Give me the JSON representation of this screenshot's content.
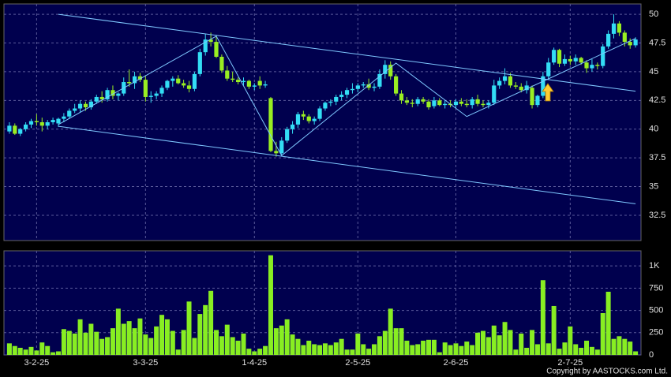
{
  "chart_data": {
    "type": "candlestick",
    "up_color": "#33ddf5",
    "down_color": "#99ee22",
    "volume_color": "#88ee22",
    "grid": true,
    "xlim": [
      -1,
      116
    ],
    "xticks": [
      {
        "value": 5,
        "label": "3-2-25"
      },
      {
        "value": 25,
        "label": "3-3-25"
      },
      {
        "value": 45,
        "label": "1-4-25"
      },
      {
        "value": 64,
        "label": "2-5-25"
      },
      {
        "value": 82,
        "label": "2-6-25"
      },
      {
        "value": 103,
        "label": "2-7-25"
      }
    ],
    "ylim": [
      30.3,
      50.9
    ],
    "yticks": [
      32.5,
      35,
      37.5,
      40,
      42.5,
      45,
      47.5,
      50
    ],
    "volume_ylim": [
      0,
      1170
    ],
    "volume_yticks": [
      0,
      250,
      500,
      750,
      {
        "value": 1000,
        "label": "1K"
      }
    ],
    "open": [
      39.8,
      40.3,
      39.6,
      40.0,
      40.4,
      40.7,
      40.6,
      40.3,
      40.6,
      40.5,
      40.9,
      41.1,
      41.6,
      41.8,
      42.2,
      41.9,
      42.4,
      42.8,
      42.6,
      43.4,
      42.9,
      43.1,
      44.1,
      44.0,
      44.6,
      44.3,
      42.8,
      42.9,
      43.1,
      43.6,
      44.2,
      44.4,
      44.0,
      43.8,
      43.5,
      44.8,
      46.7,
      47.8,
      47.6,
      46.3,
      45.1,
      44.4,
      44.3,
      44.1,
      44.2,
      43.7,
      44.2,
      43.8,
      42.7,
      38.1,
      37.9,
      39.0,
      40.0,
      40.4,
      41.3,
      41.1,
      40.7,
      40.9,
      41.8,
      42.3,
      42.4,
      42.8,
      43.0,
      43.4,
      43.5,
      43.8,
      43.9,
      43.6,
      43.7,
      44.8,
      45.6,
      44.6,
      43.1,
      42.5,
      42.3,
      42.2,
      42.6,
      42.4,
      42.0,
      42.5,
      42.1,
      42.2,
      42.1,
      42.4,
      42.2,
      42.1,
      42.6,
      42.2,
      42.1,
      42.3,
      43.8,
      44.2,
      44.6,
      43.8,
      43.7,
      43.4,
      43.6,
      42.1,
      42.9,
      44.6,
      45.8,
      46.9,
      45.7,
      46.1,
      45.9,
      46.2,
      45.8,
      45.3,
      45.6,
      45.5,
      47.2,
      48.3,
      49.2,
      48.4,
      47.6,
      47.3
    ],
    "high": [
      40.6,
      40.5,
      40.1,
      40.6,
      40.9,
      41.3,
      41.0,
      40.8,
      41.0,
      41.0,
      41.4,
      41.8,
      42.2,
      42.5,
      42.4,
      42.6,
      43.0,
      43.3,
      43.6,
      43.8,
      43.2,
      44.5,
      45.2,
      45.0,
      44.9,
      44.6,
      43.3,
      43.3,
      43.8,
      44.3,
      44.6,
      44.7,
      44.3,
      44.2,
      45.0,
      47.0,
      48.3,
      48.4,
      48.2,
      46.5,
      45.5,
      45.0,
      44.5,
      44.5,
      44.3,
      44.0,
      44.6,
      44.2,
      42.8,
      38.9,
      39.3,
      40.2,
      40.7,
      41.5,
      41.6,
      41.3,
      41.1,
      42.0,
      42.4,
      42.6,
      43.0,
      43.3,
      43.6,
      44.0,
      44.0,
      44.1,
      44.4,
      44.0,
      45.2,
      46.0,
      45.9,
      44.8,
      43.4,
      42.8,
      42.6,
      42.8,
      42.8,
      42.6,
      42.8,
      42.7,
      42.5,
      42.5,
      42.6,
      42.7,
      42.6,
      42.8,
      43.0,
      42.5,
      42.5,
      44.3,
      44.5,
      45.3,
      44.9,
      44.1,
      44.0,
      44.2,
      43.8,
      43.0,
      45.0,
      46.2,
      47.1,
      47.0,
      46.5,
      46.4,
      46.5,
      46.3,
      46.0,
      46.1,
      45.8,
      47.4,
      48.6,
      50.0,
      49.4,
      48.6,
      47.9,
      48.0
    ],
    "low": [
      39.6,
      39.5,
      39.4,
      39.8,
      40.1,
      40.3,
      39.8,
      40.0,
      40.4,
      40.2,
      40.6,
      40.9,
      41.4,
      41.5,
      41.6,
      41.7,
      42.2,
      42.3,
      42.4,
      42.6,
      42.5,
      42.9,
      43.7,
      43.5,
      44.1,
      42.4,
      42.3,
      42.6,
      42.8,
      43.4,
      43.7,
      43.9,
      43.6,
      43.2,
      43.3,
      44.6,
      46.4,
      47.2,
      46.2,
      44.9,
      44.2,
      44.1,
      43.9,
      43.8,
      43.5,
      43.4,
      43.5,
      43.6,
      38.0,
      37.6,
      37.7,
      38.8,
      39.6,
      40.1,
      40.8,
      40.5,
      40.4,
      40.7,
      41.6,
      42.0,
      42.1,
      42.5,
      42.7,
      43.1,
      43.2,
      43.6,
      43.4,
      43.3,
      43.5,
      44.4,
      44.3,
      42.9,
      42.2,
      42.1,
      41.9,
      42.0,
      42.2,
      41.7,
      41.8,
      42.0,
      41.8,
      41.9,
      41.8,
      42.0,
      41.9,
      41.8,
      42.0,
      41.9,
      41.8,
      42.1,
      43.5,
      43.9,
      43.6,
      43.5,
      43.2,
      43.1,
      41.8,
      41.9,
      42.7,
      44.3,
      45.6,
      45.4,
      45.5,
      45.6,
      45.6,
      45.6,
      44.9,
      45.0,
      45.2,
      45.3,
      47.0,
      47.9,
      48.1,
      47.2,
      47.0,
      47.1
    ],
    "close": [
      40.3,
      39.6,
      40.0,
      40.4,
      40.7,
      40.6,
      40.3,
      40.6,
      40.8,
      40.9,
      41.1,
      41.6,
      41.8,
      42.2,
      41.9,
      42.4,
      42.8,
      42.6,
      43.4,
      42.9,
      43.1,
      44.1,
      44.0,
      44.6,
      44.3,
      42.8,
      42.9,
      43.1,
      43.6,
      44.2,
      44.4,
      44.0,
      43.8,
      43.5,
      44.8,
      46.7,
      47.8,
      47.6,
      46.3,
      45.1,
      44.4,
      44.3,
      44.1,
      44.2,
      43.7,
      43.8,
      43.8,
      43.9,
      38.1,
      37.9,
      39.0,
      40.0,
      40.4,
      41.3,
      41.1,
      40.7,
      40.9,
      41.8,
      42.3,
      42.4,
      42.8,
      43.0,
      43.4,
      43.5,
      43.8,
      43.9,
      43.6,
      43.7,
      44.8,
      45.6,
      44.6,
      43.1,
      42.5,
      42.3,
      42.2,
      42.6,
      42.4,
      41.9,
      42.5,
      42.1,
      42.2,
      42.1,
      42.4,
      42.2,
      42.1,
      42.6,
      42.2,
      42.1,
      42.3,
      43.8,
      44.2,
      44.6,
      43.8,
      43.7,
      43.4,
      43.8,
      42.1,
      42.9,
      44.6,
      45.8,
      46.9,
      45.7,
      46.1,
      45.9,
      46.2,
      45.8,
      45.3,
      45.6,
      45.5,
      47.2,
      48.3,
      49.2,
      48.4,
      47.6,
      47.3,
      47.8
    ],
    "volume": [
      130,
      100,
      80,
      60,
      90,
      50,
      140,
      100,
      30,
      40,
      290,
      270,
      240,
      400,
      250,
      350,
      260,
      180,
      200,
      300,
      520,
      350,
      380,
      300,
      410,
      230,
      190,
      320,
      450,
      400,
      270,
      60,
      280,
      600,
      190,
      460,
      560,
      720,
      280,
      210,
      340,
      200,
      160,
      240,
      70,
      40,
      70,
      100,
      1120,
      300,
      330,
      400,
      230,
      180,
      110,
      160,
      120,
      110,
      130,
      110,
      140,
      180,
      60,
      60,
      240,
      120,
      70,
      120,
      210,
      270,
      520,
      300,
      300,
      160,
      110,
      120,
      160,
      170,
      170,
      30,
      140,
      110,
      130,
      100,
      150,
      110,
      250,
      270,
      200,
      330,
      220,
      370,
      280,
      60,
      240,
      80,
      280,
      120,
      840,
      130,
      550,
      70,
      140,
      320,
      120,
      80,
      160,
      90,
      60,
      470,
      710,
      180,
      210,
      180,
      150,
      40
    ],
    "trendlines": [
      {
        "color": "#7fc8ff",
        "x": [
          9,
          115
        ],
        "y": [
          50,
          43.3
        ]
      },
      {
        "color": "#7fc8ff",
        "x": [
          9,
          115
        ],
        "y": [
          40.25,
          33.5
        ]
      },
      {
        "color": "#7fc8ff",
        "x": [
          9,
          38,
          50,
          71,
          84,
          100,
          115
        ],
        "y": [
          40.4,
          48.1,
          37.7,
          45.75,
          41.1,
          44.6,
          47.9
        ]
      }
    ],
    "source": "Copyright by AASTOCKS.com Ltd."
  }
}
